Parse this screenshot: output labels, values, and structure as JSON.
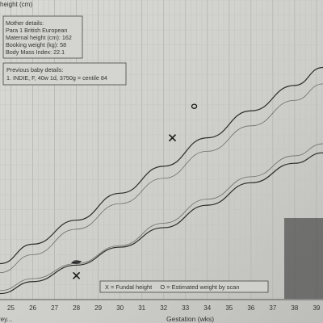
{
  "header": {
    "ylabel": "height (cm)"
  },
  "mother_box": {
    "lines": [
      "Mother details:",
      "Para 1  British European",
      "Maternal height (cm): 162",
      "Booking weight (kg): 58",
      "Body Mass Index: 22.1"
    ]
  },
  "baby_box": {
    "lines": [
      "Previous baby details:",
      "1. INDIE, F, 40w 1d, 3750g = centile 84"
    ]
  },
  "legend": {
    "text": "X = Fundal height     O = Estimated weight by scan"
  },
  "left_edge_text": "rey...",
  "chart_data": {
    "type": "line",
    "xlabel": "Gestation (wks)",
    "ylabel": "height (cm)",
    "xlim": [
      24.5,
      39.3
    ],
    "ylim": [
      0,
      1
    ],
    "x_ticks": [
      25,
      26,
      27,
      28,
      29,
      30,
      31,
      32,
      33,
      34,
      35,
      36,
      37,
      38,
      39
    ],
    "grid": true,
    "series": [
      {
        "style": "thick",
        "x": [
          24.5,
          26,
          28,
          30,
          32,
          34,
          36,
          38,
          39.3
        ],
        "y": [
          0.12,
          0.185,
          0.265,
          0.355,
          0.445,
          0.54,
          0.63,
          0.715,
          0.775
        ]
      },
      {
        "style": "thin",
        "x": [
          24.5,
          26,
          28,
          30,
          32,
          34,
          36,
          38,
          39.3
        ],
        "y": [
          0.09,
          0.15,
          0.235,
          0.32,
          0.405,
          0.495,
          0.58,
          0.665,
          0.72
        ]
      },
      {
        "style": "thin",
        "x": [
          24.5,
          26,
          28,
          30,
          32,
          34,
          36,
          38,
          39.3
        ],
        "y": [
          0.03,
          0.07,
          0.12,
          0.18,
          0.255,
          0.335,
          0.41,
          0.48,
          0.52
        ]
      },
      {
        "style": "thick",
        "x": [
          24.5,
          26,
          28,
          30,
          32,
          34,
          36,
          38,
          39.3
        ],
        "y": [
          0.02,
          0.06,
          0.115,
          0.175,
          0.24,
          0.315,
          0.39,
          0.455,
          0.49
        ]
      }
    ],
    "measurements": [
      {
        "marker": "X",
        "x": 28.0,
        "y": 0.08
      },
      {
        "marker": "X",
        "x": 32.4,
        "y": 0.54
      },
      {
        "marker": "O",
        "x": 33.4,
        "y": 0.645
      },
      {
        "marker": "scribble",
        "x": 28.0,
        "y": 0.125
      }
    ]
  }
}
